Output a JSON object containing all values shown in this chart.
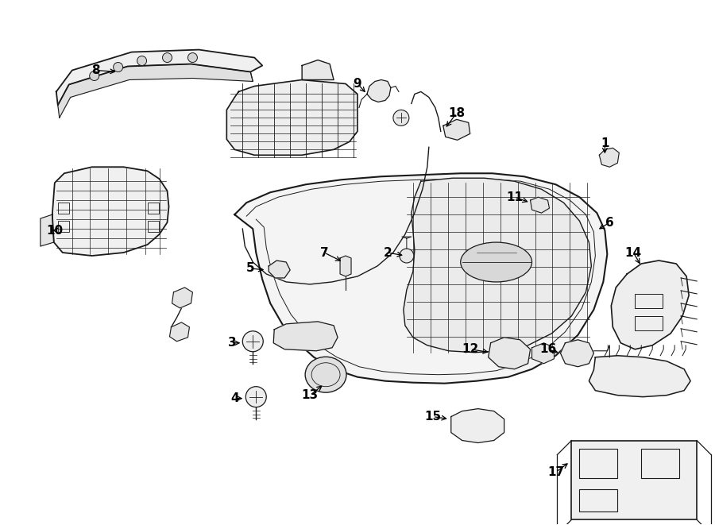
{
  "bg_color": "#ffffff",
  "line_color": "#1a1a1a",
  "text_color": "#000000",
  "fig_width": 9.0,
  "fig_height": 6.61,
  "dpi": 100
}
